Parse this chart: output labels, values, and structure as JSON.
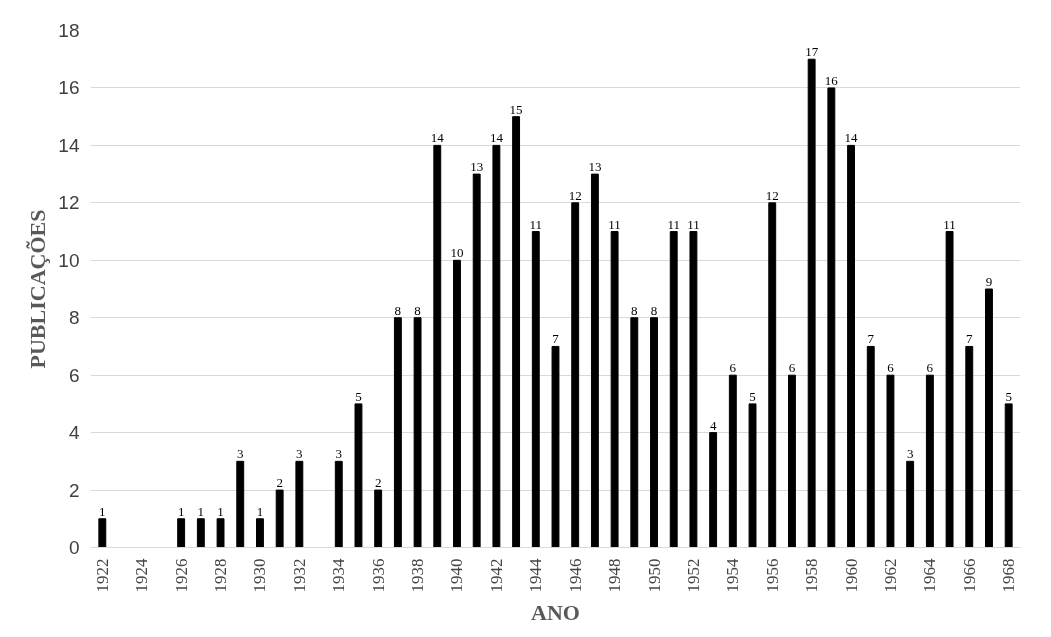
{
  "chart_data": {
    "type": "bar",
    "xlabel": "ANO",
    "ylabel": "PUBLICAÇÕES",
    "categories": [
      "1922",
      null,
      "1924",
      null,
      "1926",
      null,
      "1928",
      null,
      "1930",
      null,
      "1932",
      null,
      "1934",
      null,
      "1936",
      null,
      "1938",
      null,
      "1940",
      null,
      "1942",
      null,
      "1944",
      null,
      "1946",
      null,
      "1948",
      null,
      "1950",
      null,
      "1952",
      null,
      "1954",
      null,
      "1956",
      null,
      "1958",
      null,
      "1960",
      null,
      "1962",
      null,
      "1964",
      null,
      "1966",
      null,
      "1968"
    ],
    "values": [
      1,
      null,
      null,
      null,
      1,
      1,
      1,
      3,
      1,
      2,
      3,
      null,
      3,
      5,
      2,
      8,
      8,
      14,
      10,
      13,
      14,
      15,
      11,
      7,
      12,
      13,
      11,
      8,
      8,
      11,
      11,
      4,
      6,
      5,
      12,
      6,
      17,
      16,
      14,
      7,
      6,
      3,
      6,
      11,
      7,
      9,
      5
    ],
    "color": "#000000",
    "ylim": [
      0,
      18
    ],
    "yticks": [
      0,
      2,
      4,
      6,
      8,
      10,
      12,
      14,
      16,
      18
    ],
    "grid": "y",
    "data_labels": true
  }
}
